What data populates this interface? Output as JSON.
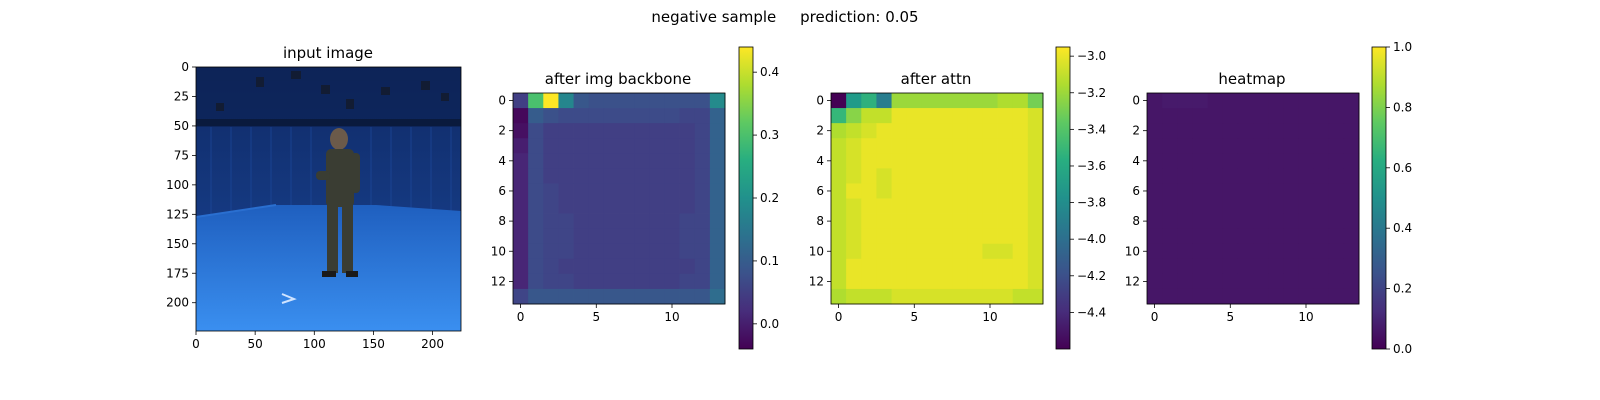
{
  "suptitle": "negative sample     prediction: 0.05",
  "chart_data": [
    {
      "type": "image",
      "title": "input image",
      "xlim": [
        0,
        224
      ],
      "ylim": [
        224,
        0
      ],
      "xticks": [
        0,
        50,
        100,
        150,
        200
      ],
      "yticks": [
        0,
        25,
        50,
        75,
        100,
        125,
        150,
        175,
        200
      ],
      "scene": {
        "background": "blue motion-capture studio with a man in a dark suit standing on a blue floor",
        "wall_color": "#173a86",
        "floor_color": "#2c7fd8"
      }
    },
    {
      "type": "heatmap",
      "title": "after img backbone",
      "colormap": "viridis",
      "vmin": -0.04,
      "vmax": 0.44,
      "xlim": [
        -0.5,
        13.5
      ],
      "ylim": [
        13.5,
        -0.5
      ],
      "xticks": [
        0,
        5,
        10
      ],
      "yticks": [
        0,
        2,
        4,
        6,
        8,
        10,
        12
      ],
      "colorbar_ticks": [
        0.0,
        0.1,
        0.2,
        0.3,
        0.4
      ],
      "colorbar_labels": [
        "0.0",
        "0.1",
        "0.2",
        "0.3",
        "0.4"
      ],
      "values": [
        [
          0.05,
          0.3,
          0.44,
          0.18,
          0.09,
          0.08,
          0.08,
          0.08,
          0.08,
          0.08,
          0.08,
          0.08,
          0.08,
          0.19
        ],
        [
          -0.03,
          0.1,
          0.08,
          0.07,
          0.07,
          0.07,
          0.07,
          0.07,
          0.07,
          0.07,
          0.07,
          0.06,
          0.06,
          0.11
        ],
        [
          -0.02,
          0.07,
          0.05,
          0.05,
          0.05,
          0.05,
          0.05,
          0.05,
          0.05,
          0.05,
          0.05,
          0.05,
          0.06,
          0.11
        ],
        [
          0.0,
          0.07,
          0.05,
          0.05,
          0.05,
          0.05,
          0.05,
          0.05,
          0.05,
          0.05,
          0.05,
          0.05,
          0.06,
          0.11
        ],
        [
          0.01,
          0.07,
          0.05,
          0.05,
          0.05,
          0.05,
          0.05,
          0.05,
          0.05,
          0.05,
          0.05,
          0.05,
          0.06,
          0.11
        ],
        [
          0.01,
          0.07,
          0.05,
          0.05,
          0.05,
          0.05,
          0.05,
          0.05,
          0.05,
          0.05,
          0.05,
          0.05,
          0.06,
          0.11
        ],
        [
          0.01,
          0.07,
          0.06,
          0.05,
          0.05,
          0.05,
          0.05,
          0.05,
          0.05,
          0.05,
          0.05,
          0.05,
          0.06,
          0.11
        ],
        [
          0.01,
          0.07,
          0.06,
          0.05,
          0.05,
          0.05,
          0.05,
          0.05,
          0.05,
          0.05,
          0.05,
          0.05,
          0.06,
          0.11
        ],
        [
          0.01,
          0.07,
          0.06,
          0.06,
          0.05,
          0.05,
          0.05,
          0.05,
          0.05,
          0.05,
          0.05,
          0.06,
          0.06,
          0.11
        ],
        [
          0.01,
          0.07,
          0.06,
          0.06,
          0.05,
          0.05,
          0.05,
          0.05,
          0.05,
          0.05,
          0.05,
          0.06,
          0.06,
          0.11
        ],
        [
          0.01,
          0.07,
          0.06,
          0.06,
          0.05,
          0.05,
          0.05,
          0.05,
          0.05,
          0.05,
          0.05,
          0.06,
          0.06,
          0.11
        ],
        [
          0.01,
          0.07,
          0.06,
          0.05,
          0.05,
          0.05,
          0.05,
          0.05,
          0.05,
          0.05,
          0.05,
          0.05,
          0.06,
          0.11
        ],
        [
          0.01,
          0.07,
          0.06,
          0.06,
          0.05,
          0.05,
          0.05,
          0.05,
          0.05,
          0.05,
          0.05,
          0.06,
          0.06,
          0.11
        ],
        [
          0.06,
          0.09,
          0.09,
          0.09,
          0.09,
          0.09,
          0.09,
          0.09,
          0.09,
          0.09,
          0.09,
          0.09,
          0.09,
          0.13
        ]
      ]
    },
    {
      "type": "heatmap",
      "title": "after attn",
      "colormap": "viridis",
      "vmin": -4.6,
      "vmax": -2.95,
      "xlim": [
        -0.5,
        13.5
      ],
      "ylim": [
        13.5,
        -0.5
      ],
      "xticks": [
        0,
        5,
        10
      ],
      "yticks": [
        0,
        2,
        4,
        6,
        8,
        10,
        12
      ],
      "colorbar_ticks": [
        -3.0,
        -3.2,
        -3.4,
        -3.6,
        -3.8,
        -4.0,
        -4.2,
        -4.4
      ],
      "colorbar_labels": [
        "−3.0",
        "−3.2",
        "−3.4",
        "−3.6",
        "−3.8",
        "−4.0",
        "−4.2",
        "−4.4"
      ],
      "values": [
        [
          -4.6,
          -3.7,
          -3.55,
          -3.9,
          -3.2,
          -3.2,
          -3.2,
          -3.2,
          -3.2,
          -3.2,
          -3.2,
          -3.15,
          -3.15,
          -3.3
        ],
        [
          -3.5,
          -3.25,
          -3.1,
          -3.1,
          -3.0,
          -3.0,
          -3.0,
          -3.0,
          -3.0,
          -3.0,
          -3.0,
          -3.0,
          -3.0,
          -3.05
        ],
        [
          -3.15,
          -3.1,
          -3.05,
          -3.0,
          -3.0,
          -3.0,
          -3.0,
          -3.0,
          -3.0,
          -3.0,
          -3.0,
          -3.0,
          -3.0,
          -3.05
        ],
        [
          -3.1,
          -3.05,
          -3.0,
          -3.0,
          -3.0,
          -3.0,
          -3.0,
          -3.0,
          -3.0,
          -3.0,
          -3.0,
          -3.0,
          -3.0,
          -3.05
        ],
        [
          -3.1,
          -3.05,
          -3.0,
          -3.0,
          -3.0,
          -3.0,
          -3.0,
          -3.0,
          -3.0,
          -3.0,
          -3.0,
          -3.0,
          -3.0,
          -3.05
        ],
        [
          -3.1,
          -3.05,
          -3.0,
          -3.05,
          -3.0,
          -3.0,
          -3.0,
          -3.0,
          -3.0,
          -3.0,
          -3.0,
          -3.0,
          -3.0,
          -3.05
        ],
        [
          -3.1,
          -3.0,
          -3.0,
          -3.05,
          -3.0,
          -3.0,
          -3.0,
          -3.0,
          -3.0,
          -3.0,
          -3.0,
          -3.0,
          -3.0,
          -3.05
        ],
        [
          -3.1,
          -3.05,
          -3.0,
          -3.0,
          -3.0,
          -3.0,
          -3.0,
          -3.0,
          -3.0,
          -3.0,
          -3.0,
          -3.0,
          -3.0,
          -3.05
        ],
        [
          -3.1,
          -3.05,
          -3.0,
          -3.0,
          -3.0,
          -3.0,
          -3.0,
          -3.0,
          -3.0,
          -3.0,
          -3.0,
          -3.0,
          -3.0,
          -3.05
        ],
        [
          -3.1,
          -3.05,
          -3.0,
          -3.0,
          -3.0,
          -3.0,
          -3.0,
          -3.0,
          -3.0,
          -3.0,
          -3.0,
          -3.0,
          -3.0,
          -3.05
        ],
        [
          -3.1,
          -3.05,
          -3.0,
          -3.0,
          -3.0,
          -3.0,
          -3.0,
          -3.0,
          -3.0,
          -3.0,
          -3.05,
          -3.05,
          -3.0,
          -3.05
        ],
        [
          -3.1,
          -3.0,
          -3.0,
          -3.0,
          -3.0,
          -3.0,
          -3.0,
          -3.0,
          -3.0,
          -3.0,
          -3.0,
          -3.0,
          -3.0,
          -3.05
        ],
        [
          -3.1,
          -3.0,
          -3.0,
          -3.0,
          -3.0,
          -3.0,
          -3.0,
          -3.0,
          -3.0,
          -3.0,
          -3.0,
          -3.0,
          -3.0,
          -3.05
        ],
        [
          -3.15,
          -3.1,
          -3.1,
          -3.1,
          -3.05,
          -3.05,
          -3.05,
          -3.05,
          -3.05,
          -3.05,
          -3.05,
          -3.05,
          -3.1,
          -3.1
        ]
      ]
    },
    {
      "type": "heatmap",
      "title": "heatmap",
      "colormap": "viridis",
      "vmin": 0.0,
      "vmax": 1.0,
      "xlim": [
        -0.5,
        13.5
      ],
      "ylim": [
        13.5,
        -0.5
      ],
      "xticks": [
        0,
        5,
        10
      ],
      "yticks": [
        0,
        2,
        4,
        6,
        8,
        10,
        12
      ],
      "colorbar_ticks": [
        0.0,
        0.2,
        0.4,
        0.6,
        0.8,
        1.0
      ],
      "colorbar_labels": [
        "0.0",
        "0.2",
        "0.4",
        "0.6",
        "0.8",
        "1.0"
      ],
      "values": [
        [
          0.06,
          0.07,
          0.07,
          0.07,
          0.06,
          0.06,
          0.06,
          0.06,
          0.06,
          0.06,
          0.06,
          0.06,
          0.06,
          0.06
        ],
        [
          0.06,
          0.06,
          0.06,
          0.06,
          0.06,
          0.06,
          0.06,
          0.06,
          0.06,
          0.06,
          0.06,
          0.06,
          0.06,
          0.06
        ],
        [
          0.06,
          0.06,
          0.06,
          0.06,
          0.06,
          0.06,
          0.06,
          0.06,
          0.06,
          0.06,
          0.06,
          0.06,
          0.06,
          0.06
        ],
        [
          0.06,
          0.06,
          0.06,
          0.06,
          0.06,
          0.06,
          0.06,
          0.06,
          0.06,
          0.06,
          0.06,
          0.06,
          0.06,
          0.06
        ],
        [
          0.06,
          0.06,
          0.06,
          0.06,
          0.06,
          0.06,
          0.06,
          0.06,
          0.06,
          0.06,
          0.06,
          0.06,
          0.06,
          0.06
        ],
        [
          0.06,
          0.06,
          0.06,
          0.06,
          0.06,
          0.06,
          0.06,
          0.06,
          0.06,
          0.06,
          0.06,
          0.06,
          0.06,
          0.06
        ],
        [
          0.06,
          0.06,
          0.06,
          0.06,
          0.06,
          0.06,
          0.06,
          0.06,
          0.06,
          0.06,
          0.06,
          0.06,
          0.06,
          0.06
        ],
        [
          0.06,
          0.06,
          0.06,
          0.06,
          0.06,
          0.06,
          0.06,
          0.06,
          0.06,
          0.06,
          0.06,
          0.06,
          0.06,
          0.06
        ],
        [
          0.06,
          0.06,
          0.06,
          0.06,
          0.06,
          0.06,
          0.06,
          0.06,
          0.06,
          0.06,
          0.06,
          0.06,
          0.06,
          0.06
        ],
        [
          0.06,
          0.06,
          0.06,
          0.06,
          0.06,
          0.06,
          0.06,
          0.06,
          0.06,
          0.06,
          0.06,
          0.06,
          0.06,
          0.06
        ],
        [
          0.06,
          0.06,
          0.06,
          0.06,
          0.06,
          0.06,
          0.06,
          0.06,
          0.06,
          0.06,
          0.06,
          0.06,
          0.06,
          0.06
        ],
        [
          0.06,
          0.06,
          0.06,
          0.06,
          0.06,
          0.06,
          0.06,
          0.06,
          0.06,
          0.06,
          0.06,
          0.06,
          0.06,
          0.06
        ],
        [
          0.06,
          0.06,
          0.06,
          0.06,
          0.06,
          0.06,
          0.06,
          0.06,
          0.06,
          0.06,
          0.06,
          0.06,
          0.06,
          0.06
        ],
        [
          0.06,
          0.06,
          0.06,
          0.06,
          0.06,
          0.06,
          0.06,
          0.06,
          0.06,
          0.06,
          0.06,
          0.06,
          0.06,
          0.06
        ]
      ]
    }
  ]
}
